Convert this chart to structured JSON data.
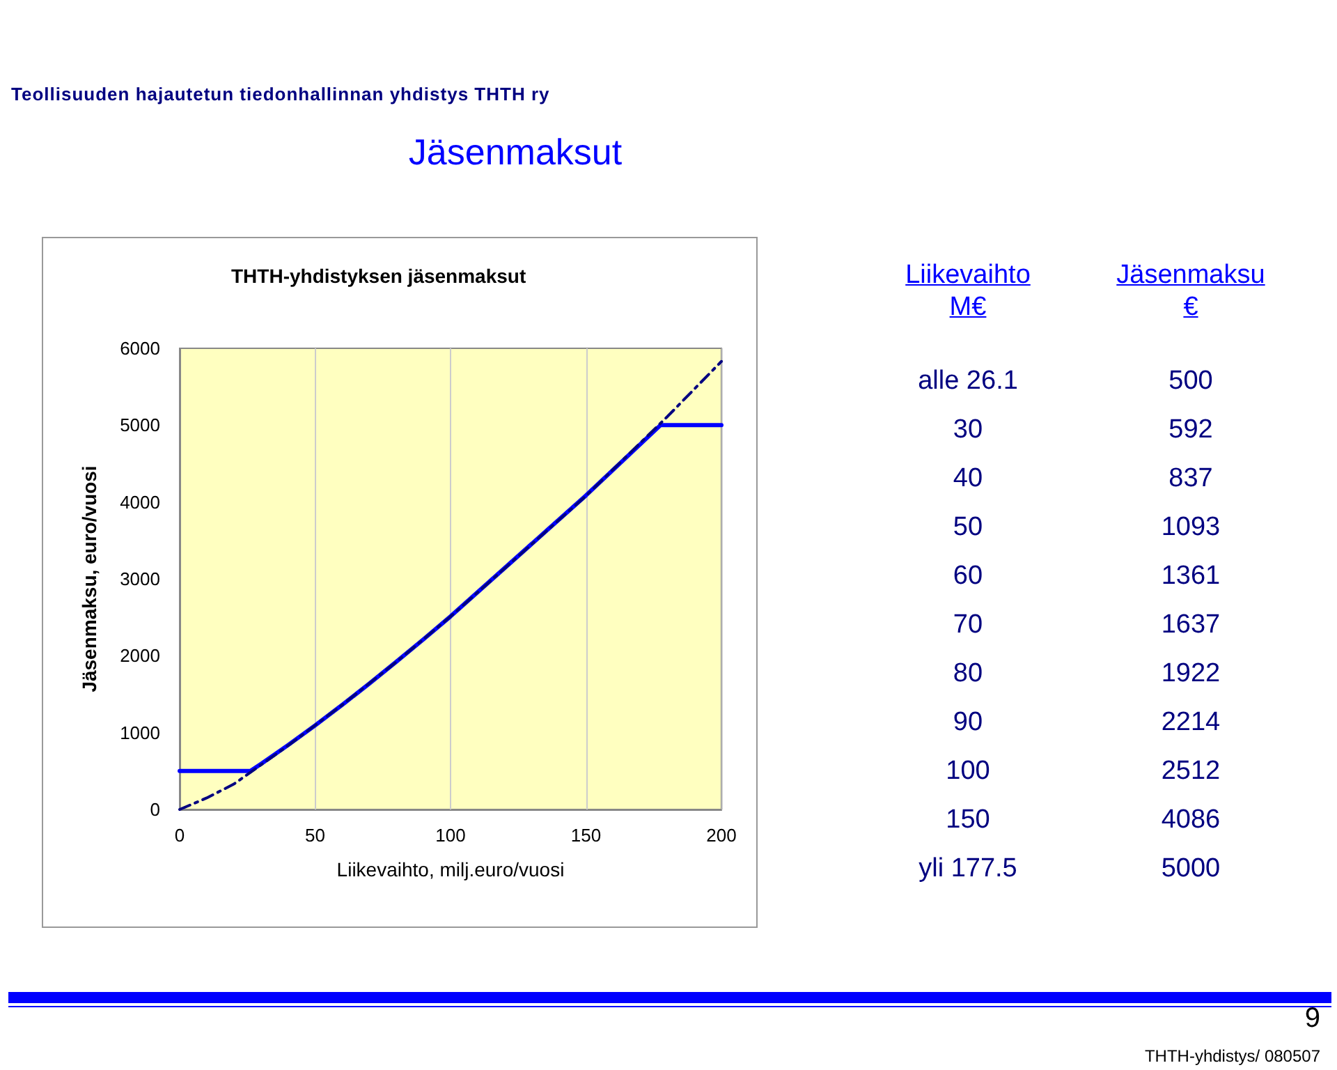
{
  "chart_data": {
    "type": "line",
    "title": "Jäsenmaksut",
    "subtitle": "THTH-yhdistyksen jäsenmaksut",
    "xlabel": "Liikevaihto, milj.euro/vuosi",
    "ylabel": "Jäsenmaksu, euro/vuosi",
    "series": [
      {
        "color": "#0000ff",
        "line_style": "solid",
        "x": [
          0,
          26.1,
          30,
          40,
          50,
          60,
          70,
          80,
          90,
          100,
          150,
          177.5,
          200
        ],
        "values": [
          500,
          500,
          592,
          837,
          1093,
          1361,
          1637,
          1922,
          2214,
          2512,
          4086,
          5000,
          5000
        ]
      },
      {
        "color": "#000080",
        "line_style": "dashed",
        "x": [
          0,
          10,
          20,
          40,
          60,
          80,
          100,
          150,
          180,
          200
        ],
        "values": [
          0,
          150,
          330,
          830,
          1360,
          1920,
          2510,
          4080,
          5110,
          5830
        ]
      }
    ],
    "xlim": [
      0,
      200
    ],
    "xticks": [
      0,
      50,
      100,
      150,
      200
    ],
    "ylim": [
      0,
      6000
    ],
    "yticks": [
      0,
      1000,
      2000,
      3000,
      4000,
      5000,
      6000
    ],
    "grid": "x",
    "marker": "none",
    "annotations": [
      "Teollisuuden hajautetun tiedonhallinnan yhdistys THTH ry",
      "THTH-yhdistys/ 080507",
      "9",
      "Liikevaihto\nM€",
      "Jäsenmaksu\n€",
      "alle 26.1",
      "500",
      "30",
      "592",
      "40",
      "837",
      "50",
      "1093",
      "60",
      "1361",
      "70",
      "1637",
      "80",
      "1922",
      "90",
      "2214",
      "100",
      "2512",
      "150",
      "4086",
      "yli 177.5",
      "5000"
    ]
  }
}
